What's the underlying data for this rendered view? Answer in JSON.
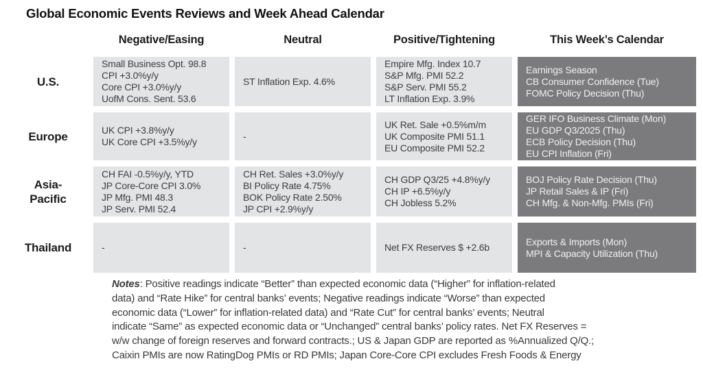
{
  "title": "Global Economic Events Reviews and Week Ahead Calendar",
  "columns": [
    "Negative/Easing",
    "Neutral",
    "Positive/Tightening",
    "This Week’s Calendar"
  ],
  "colors": {
    "review_cell_bg": "#e3e4e6",
    "calendar_cell_bg": "#7b7a7c",
    "review_cell_text": "#3d3d3f",
    "calendar_cell_text": "#f2f1f2",
    "heading_text": "#1b1b1d"
  },
  "rows": [
    {
      "region_lines": [
        "U.S."
      ],
      "negative": [
        "Small Business Opt. 98.8",
        "CPI +3.0%y/y",
        "Core CPI +3.0%y/y",
        "UofM Cons. Sent. 53.6"
      ],
      "neutral": [
        "ST Inflation Exp. 4.6%"
      ],
      "positive": [
        "Empire Mfg. Index 10.7",
        "S&P Mfg. PMI 52.2",
        "S&P Serv. PMI 55.2",
        "LT Inflation Exp. 3.9%"
      ],
      "calendar": [
        "Earnings Season",
        "CB Consumer Confidence (Tue)",
        "FOMC Policy Decision (Thu)"
      ]
    },
    {
      "region_lines": [
        "Europe"
      ],
      "negative": [
        "UK CPI +3.8%y/y",
        "UK Core CPI +3.5%y/y"
      ],
      "neutral": [
        "-"
      ],
      "positive": [
        "UK Ret. Sale +0.5%m/m",
        "UK Composite PMI 51.1",
        "EU Composite PMI 52.2"
      ],
      "calendar": [
        "GER IFO Business Climate (Mon)",
        "EU GDP Q3/2025 (Thu)",
        "ECB Policy Decision (Thu)",
        "EU CPI Inflation (Fri)"
      ]
    },
    {
      "region_lines": [
        "Asia-",
        "Pacific"
      ],
      "negative": [
        "CH FAI -0.5%y/y, YTD",
        "JP Core-Core CPI 3.0%",
        "JP Mfg. PMI 48.3",
        "JP Serv. PMI 52.4"
      ],
      "neutral": [
        "CH Ret. Sales +3.0%y/y",
        "BI Policy Rate 4.75%",
        "BOK Policy Rate 2.50%",
        "JP CPI +2.9%y/y"
      ],
      "positive": [
        "CH GDP Q3/25 +4.8%y/y",
        "CH IP +6.5%y/y",
        "CH Jobless 5.2%"
      ],
      "calendar": [
        "BOJ Policy Rate Decision (Thu)",
        "JP Retail Sales & IP (Fri)",
        "CH Mfg. & Non-Mfg. PMIs (Fri)"
      ]
    },
    {
      "region_lines": [
        "Thailand"
      ],
      "negative": [
        "-"
      ],
      "neutral": [
        "-"
      ],
      "positive": [
        "Net FX Reserves $ +2.6b"
      ],
      "calendar": [
        "Exports & Imports (Mon)",
        "MPI & Capacity Utilization (Thu)"
      ]
    }
  ],
  "notes": {
    "label": "Notes",
    "lines": [
      ": Positive readings indicate “Better” than expected economic data (“Higher” for inflation-related",
      "data) and “Rate Hike” for central banks’ events; Negative readings indicate “Worse” than expected",
      "economic data (“Lower” for inflation-related data) and “Rate Cut” for central banks’ events; Neutral",
      "indicate “Same” as expected economic data or “Unchanged” central banks’ policy rates. Net FX Reserves =",
      "w/w change of foreign reserves and forward contracts.; US & Japan GDP are reported as %Annualized Q/Q.;",
      "Caixin PMIs are now RatingDog PMIs or RD PMIs; Japan Core-Core CPI excludes Fresh Foods & Energy"
    ]
  }
}
